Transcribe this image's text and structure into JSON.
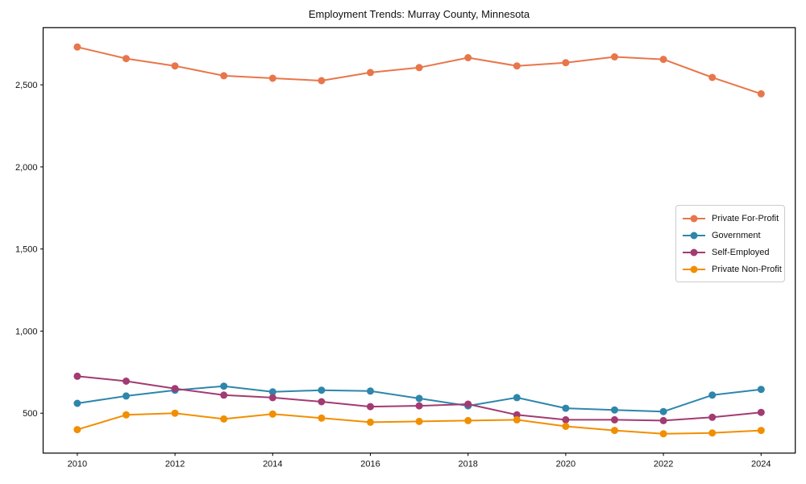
{
  "chart_data": {
    "type": "line",
    "title": "Employment Trends: Murray County, Minnesota",
    "x": [
      2010,
      2011,
      2012,
      2013,
      2014,
      2015,
      2016,
      2017,
      2018,
      2019,
      2020,
      2021,
      2022,
      2023,
      2024
    ],
    "series": [
      {
        "name": "Private For-Profit",
        "color": "#E8764B",
        "values": [
          2730,
          2660,
          2615,
          2555,
          2540,
          2525,
          2575,
          2605,
          2665,
          2615,
          2635,
          2670,
          2655,
          2545,
          2445
        ]
      },
      {
        "name": "Government",
        "color": "#2E86AB",
        "values": [
          560,
          605,
          640,
          665,
          630,
          640,
          635,
          590,
          545,
          595,
          530,
          520,
          510,
          610,
          645
        ]
      },
      {
        "name": "Self-Employed",
        "color": "#A23B72",
        "values": [
          725,
          695,
          650,
          610,
          595,
          570,
          540,
          545,
          555,
          490,
          460,
          460,
          455,
          475,
          505
        ]
      },
      {
        "name": "Private Non-Profit",
        "color": "#F18F01",
        "values": [
          400,
          490,
          500,
          465,
          495,
          470,
          445,
          450,
          455,
          460,
          420,
          395,
          375,
          380,
          395
        ]
      }
    ],
    "xticks": [
      2010,
      2012,
      2014,
      2016,
      2018,
      2020,
      2022,
      2024
    ],
    "yticks": [
      500,
      1000,
      1500,
      2000,
      2500
    ],
    "ytick_labels": [
      "500",
      "1,000",
      "1,500",
      "2,000",
      "2,500"
    ],
    "xlim": [
      2009.3,
      2024.7
    ],
    "ylim": [
      257,
      2848
    ],
    "grid": false,
    "legend_position": "center right",
    "marker": "circle",
    "axis_color": "#000000",
    "background": "#ffffff"
  }
}
